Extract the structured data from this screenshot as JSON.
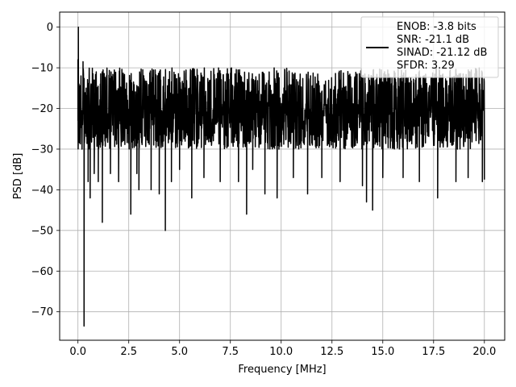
{
  "chart_data": {
    "type": "line",
    "title": "",
    "xlabel": "Frequency [MHz]",
    "ylabel": "PSD [dB]",
    "xlim": [
      -0.9,
      21.0
    ],
    "ylim": [
      -77.0,
      3.7
    ],
    "xticks": [
      0.0,
      2.5,
      5.0,
      7.5,
      10.0,
      12.5,
      15.0,
      17.5,
      20.0
    ],
    "xtick_labels": [
      "0.0",
      "2.5",
      "5.0",
      "7.5",
      "10.0",
      "12.5",
      "15.0",
      "17.5",
      "20.0"
    ],
    "yticks": [
      0,
      -10,
      -20,
      -30,
      -40,
      -50,
      -60,
      -70
    ],
    "ytick_labels": [
      "0",
      "−10",
      "−20",
      "−30",
      "−40",
      "−50",
      "−60",
      "−70"
    ],
    "grid": true,
    "legend_position": "top-right",
    "legend_lines": [
      "ENOB: -3.8 bits",
      "SNR: -21.1 dB",
      "SINAD: -21.12 dB",
      "SFDR: 3.29"
    ],
    "series": [
      {
        "color": "#000000",
        "band": {
          "x_start": 0.0,
          "x_end": 20.0,
          "upper": -10.0,
          "lower": -30.0,
          "typical": -20.0
        },
        "points": [
          [
            0.0,
            -8.0
          ],
          [
            0.02,
            0.0
          ],
          [
            0.05,
            -14.0
          ],
          [
            0.08,
            -20.0
          ],
          [
            0.1,
            -23.0
          ],
          [
            0.15,
            -12.0
          ],
          [
            0.2,
            -30.0
          ],
          [
            0.25,
            -8.5
          ],
          [
            0.3,
            -73.5
          ],
          [
            0.35,
            -25.0
          ],
          [
            0.4,
            -15.0
          ],
          [
            0.5,
            -38.0
          ],
          [
            0.55,
            -12.0
          ],
          [
            0.6,
            -42.0
          ],
          [
            0.65,
            -18.0
          ],
          [
            0.8,
            -36.0
          ],
          [
            0.9,
            -11.0
          ],
          [
            1.0,
            -38.0
          ],
          [
            1.1,
            -14.0
          ],
          [
            1.2,
            -48.0
          ],
          [
            1.3,
            -16.0
          ],
          [
            1.6,
            -36.0
          ],
          [
            2.0,
            -38.0
          ],
          [
            2.6,
            -46.0
          ],
          [
            2.9,
            -36.0
          ],
          [
            3.0,
            -40.0
          ],
          [
            3.6,
            -40.0
          ],
          [
            4.0,
            -41.0
          ],
          [
            4.3,
            -50.0
          ],
          [
            4.6,
            -38.0
          ],
          [
            5.0,
            -35.0
          ],
          [
            5.6,
            -42.0
          ],
          [
            6.2,
            -37.0
          ],
          [
            7.0,
            -38.0
          ],
          [
            7.9,
            -38.0
          ],
          [
            8.3,
            -46.0
          ],
          [
            8.6,
            -35.0
          ],
          [
            9.2,
            -41.0
          ],
          [
            9.8,
            -42.0
          ],
          [
            10.6,
            -37.0
          ],
          [
            11.3,
            -41.0
          ],
          [
            12.0,
            -37.0
          ],
          [
            12.9,
            -38.0
          ],
          [
            14.0,
            -39.0
          ],
          [
            14.2,
            -43.0
          ],
          [
            14.5,
            -45.0
          ],
          [
            15.0,
            -37.0
          ],
          [
            16.0,
            -37.0
          ],
          [
            16.8,
            -38.0
          ],
          [
            17.7,
            -42.0
          ],
          [
            18.6,
            -38.0
          ],
          [
            19.2,
            -37.0
          ],
          [
            19.9,
            -38.0
          ],
          [
            20.0,
            -37.5
          ]
        ]
      }
    ]
  }
}
